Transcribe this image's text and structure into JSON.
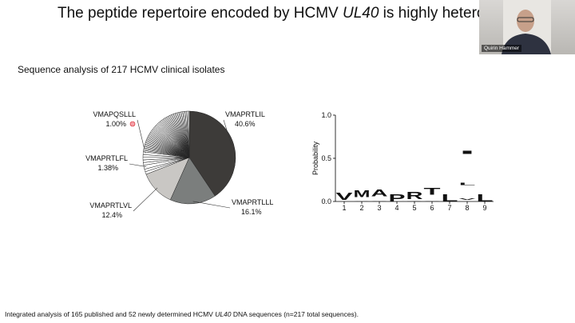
{
  "slide": {
    "title": {
      "before": "The peptide repertoire encoded by HCMV ",
      "italic": "UL40",
      "after": " is highly heterogeneous"
    },
    "subtitle": "Sequence analysis of 217 HCMV clinical isolates",
    "footnote": {
      "before": "Integrated analysis of 165 published and 52 newly determined HCMV ",
      "italic": "UL40",
      "after": " DNA sequences (n=217 total sequences)."
    }
  },
  "video": {
    "name": "Quirin Hammer"
  },
  "chart_data": [
    {
      "type": "pie",
      "categories": [
        "VMAPRTLIL",
        "VMAPRTLLL",
        "VMAPRTLVL",
        null,
        null,
        "VMAPRTLFL",
        null,
        null,
        null,
        null,
        "VMAPQSLLL",
        null,
        null,
        null,
        null,
        null,
        null,
        null,
        null,
        null,
        null,
        null,
        null,
        null,
        null,
        null,
        null,
        null,
        null,
        null,
        null,
        null,
        null,
        null,
        null,
        null,
        null,
        null,
        null,
        null,
        null,
        null,
        null,
        null,
        null,
        null,
        null,
        null,
        null,
        null,
        null,
        null,
        null,
        null,
        null,
        null,
        null,
        null,
        null,
        null,
        null
      ],
      "values": [
        40.6,
        16.1,
        12.4,
        0.92,
        0.92,
        1.38,
        0.92,
        0.92,
        0.92,
        0.92,
        1.0,
        0.46,
        0.46,
        0.46,
        0.46,
        0.46,
        0.46,
        0.46,
        0.46,
        0.46,
        0.46,
        0.46,
        0.46,
        0.46,
        0.46,
        0.46,
        0.46,
        0.46,
        0.46,
        0.46,
        0.46,
        0.46,
        0.46,
        0.46,
        0.46,
        0.46,
        0.46,
        0.46,
        0.46,
        0.46,
        0.46,
        0.46,
        0.46,
        0.46,
        0.46,
        0.46,
        0.46,
        0.46,
        0.46,
        0.46,
        0.46,
        0.46,
        0.46,
        0.46,
        0.46,
        0.46,
        0.46,
        0.46,
        0.46,
        0.46,
        0.46
      ],
      "value_labels": [
        "40.6%",
        "16.1%",
        "12.4%",
        null,
        null,
        "1.38%",
        null,
        null,
        null,
        null,
        "1.00%",
        null,
        null,
        null,
        null,
        null,
        null,
        null,
        null,
        null,
        null,
        null,
        null,
        null,
        null,
        null,
        null,
        null,
        null,
        null,
        null,
        null,
        null,
        null,
        null,
        null,
        null,
        null,
        null,
        null,
        null,
        null,
        null,
        null,
        null,
        null,
        null,
        null,
        null,
        null,
        null,
        null,
        null,
        null,
        null,
        null,
        null,
        null,
        null,
        null,
        null
      ],
      "colors": [
        "#3d3b39",
        "#7b7e7d",
        "#c9c7c4"
      ],
      "other_color": "#ffffff"
    },
    {
      "type": "sequence-logo",
      "ylabel": "Probability",
      "categories": [
        "1",
        "2",
        "3",
        "4",
        "5",
        "6",
        "7",
        "8",
        "9"
      ],
      "ylim": [
        0,
        1
      ],
      "yticks": [
        {
          "value": 0,
          "label": "0.0"
        },
        {
          "value": 0.5,
          "label": "0.5"
        },
        {
          "value": 1,
          "label": "1.0"
        }
      ],
      "positions": [
        {
          "letters": [
            {
              "letter": "A",
              "value": 0.02,
              "color": "#000000"
            },
            {
              "letter": "V",
              "value": 0.96,
              "color": "#000000"
            }
          ]
        },
        {
          "letters": [
            {
              "letter": "A",
              "value": 0.05,
              "color": "#000000"
            },
            {
              "letter": "M",
              "value": 0.92,
              "color": "#000000"
            }
          ]
        },
        {
          "letters": [
            {
              "letter": "S",
              "value": 0.06,
              "color": "#000000"
            },
            {
              "letter": "A",
              "value": 0.9,
              "color": "#000000"
            }
          ]
        },
        {
          "letters": [
            {
              "letter": "P",
              "value": 0.97,
              "color": "#000000"
            }
          ]
        },
        {
          "letters": [
            {
              "letter": "Q",
              "value": 0.03,
              "color": "#000000"
            },
            {
              "letter": "R",
              "value": 0.95,
              "color": "#000000"
            }
          ]
        },
        {
          "letters": [
            {
              "letter": "S",
              "value": 0.08,
              "color": "#000000"
            },
            {
              "letter": "T",
              "value": 0.89,
              "color": "#000000"
            }
          ]
        },
        {
          "letters": [
            {
              "letter": "L",
              "value": 0.98,
              "color": "#000000"
            }
          ]
        },
        {
          "letters": [
            {
              "letter": "F",
              "value": 0.02,
              "color": "#000000"
            },
            {
              "letter": "V",
              "value": 0.17,
              "color": "#d7262b"
            },
            {
              "letter": "L",
              "value": 0.36,
              "color": "#000000"
            },
            {
              "letter": "I",
              "value": 0.43,
              "color": "#d7262b"
            }
          ]
        },
        {
          "letters": [
            {
              "letter": "L",
              "value": 0.98,
              "color": "#000000"
            }
          ]
        }
      ]
    }
  ]
}
